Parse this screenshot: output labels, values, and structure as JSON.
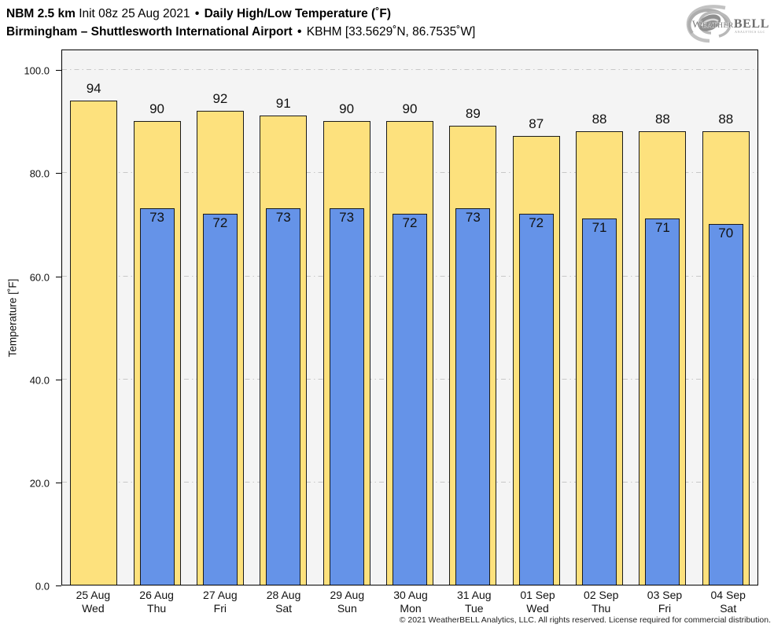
{
  "header": {
    "line1": {
      "model": "NBM 2.5 km",
      "init": "Init 08z 25 Aug 2021",
      "sep": "•",
      "title": "Daily High/Low Temperature (˚F)"
    },
    "line2": {
      "station": "Birmingham – Shuttlesworth International Airport",
      "sep": "•",
      "station_id": "KBHM [33.5629˚N, 86.7535˚W]"
    }
  },
  "logo": {
    "brand_prefix": "W",
    "brand_mid": "EATHER",
    "brand_suffix": "BELL",
    "subtext": "ANALYTICS LLC"
  },
  "chart_data": {
    "type": "bar",
    "title": "NBM 2.5 km Init 08z 25 Aug 2021 • Daily High/Low Temperature (˚F)",
    "subtitle": "Birmingham – Shuttlesworth International Airport • KBHM [33.5629˚N, 86.7535˚W]",
    "ylabel": "Temperature [˚F]",
    "xlabel": "",
    "ylim": [
      0,
      104
    ],
    "yticks": [
      0,
      20,
      40,
      60,
      80,
      100
    ],
    "ytick_labels": [
      "0.0",
      "20.0",
      "40.0",
      "60.0",
      "80.0",
      "100.0"
    ],
    "grid": "horizontal dash-dot",
    "legend": "none",
    "categories": [
      {
        "date": "25 Aug",
        "day": "Wed"
      },
      {
        "date": "26 Aug",
        "day": "Thu"
      },
      {
        "date": "27 Aug",
        "day": "Fri"
      },
      {
        "date": "28 Aug",
        "day": "Sat"
      },
      {
        "date": "29 Aug",
        "day": "Sun"
      },
      {
        "date": "30 Aug",
        "day": "Mon"
      },
      {
        "date": "31 Aug",
        "day": "Tue"
      },
      {
        "date": "01 Sep",
        "day": "Wed"
      },
      {
        "date": "02 Sep",
        "day": "Thu"
      },
      {
        "date": "03 Sep",
        "day": "Fri"
      },
      {
        "date": "04 Sep",
        "day": "Sat"
      }
    ],
    "series": [
      {
        "name": "High",
        "color": "#FDE17D",
        "values": [
          94,
          90,
          92,
          91,
          90,
          90,
          89,
          87,
          88,
          88,
          88
        ]
      },
      {
        "name": "Low",
        "color": "#6593E8",
        "values": [
          null,
          73,
          72,
          73,
          73,
          72,
          73,
          72,
          71,
          71,
          70
        ]
      }
    ],
    "colors": {
      "plot_background": "#F4F4F4",
      "gridline": "#C8C8C8",
      "bar_border": "#1A1A1A",
      "axis": "#000000"
    }
  },
  "footer": {
    "copyright": "© 2021 WeatherBELL Analytics, LLC. All rights reserved. License required for commercial distribution."
  }
}
